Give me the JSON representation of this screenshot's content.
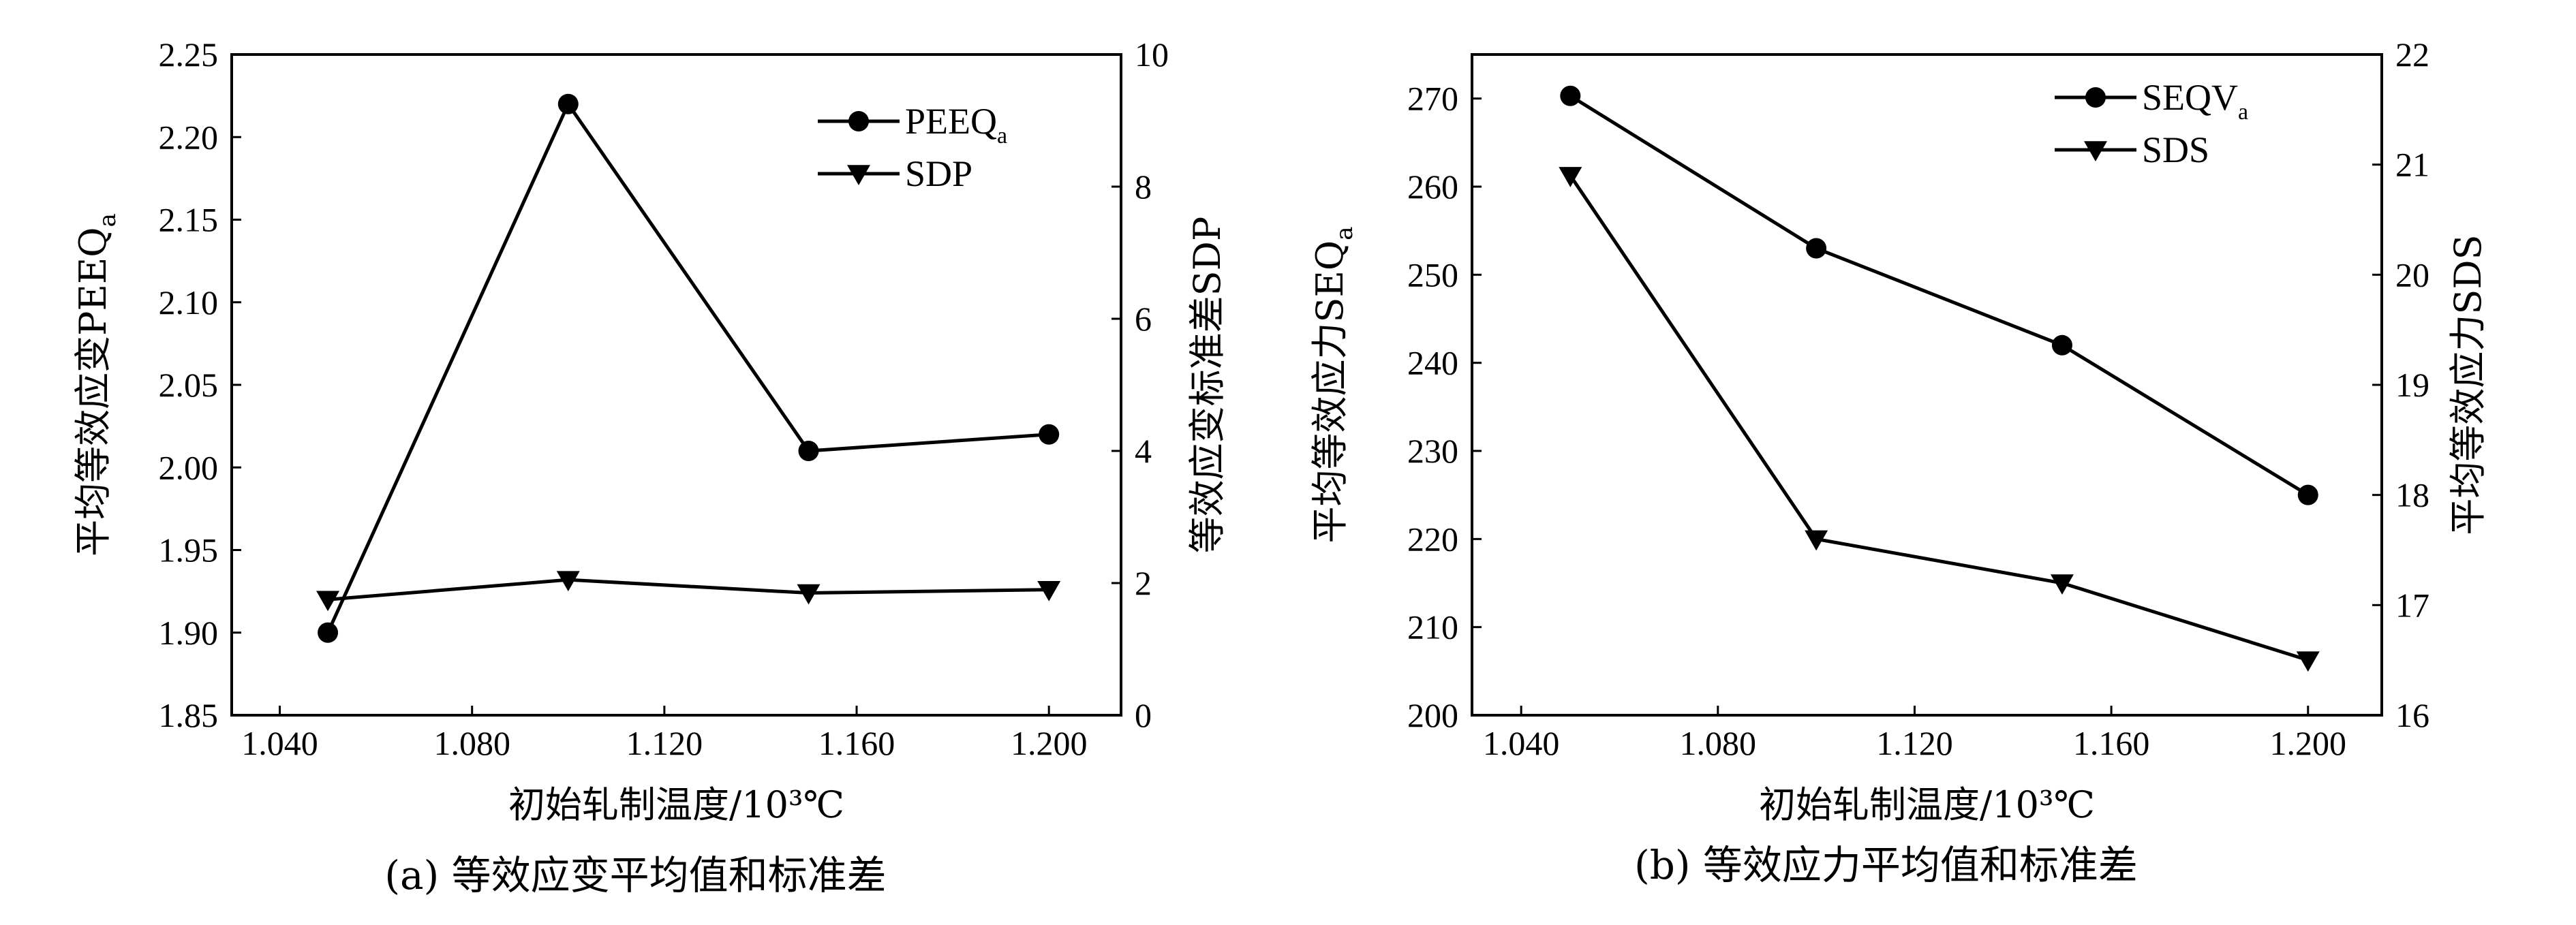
{
  "chart_data": [
    {
      "type": "line",
      "caption": "(a) 等效应变平均值和标准差",
      "xlabel": "初始轧制温度/10³℃",
      "x_ticks": [
        "1.040",
        "1.080",
        "1.120",
        "1.160",
        "1.200"
      ],
      "xlim": [
        1.03,
        1.215
      ],
      "ylabel_left": {
        "text": "平均等效应变PEEQ",
        "sub": "a"
      },
      "ylim_left": [
        1.85,
        2.25
      ],
      "yticks_left": [
        "1.85",
        "1.90",
        "1.95",
        "2.00",
        "2.05",
        "2.10",
        "2.15",
        "2.20",
        "2.25"
      ],
      "ylabel_right": "等效应变标准差SDP",
      "ylim_right": [
        0,
        10
      ],
      "yticks_right": [
        "0",
        "2",
        "4",
        "6",
        "8",
        "10"
      ],
      "x": [
        1.05,
        1.1,
        1.15,
        1.2
      ],
      "series": [
        {
          "name": "PEEQ",
          "sub": "a",
          "marker": "circle",
          "axis": "left",
          "values": [
            1.9,
            2.22,
            2.01,
            2.02
          ]
        },
        {
          "name": "SDP",
          "sub": "",
          "marker": "triangle-down",
          "axis": "right",
          "values": [
            1.75,
            2.05,
            1.85,
            1.9
          ]
        }
      ]
    },
    {
      "type": "line",
      "caption": "(b) 等效应力平均值和标准差",
      "xlabel": "初始轧制温度/10³℃",
      "x_ticks": [
        "1.040",
        "1.080",
        "1.120",
        "1.160",
        "1.200"
      ],
      "xlim": [
        1.03,
        1.215
      ],
      "ylabel_left": {
        "text": "平均等效应力SEQ",
        "sub": "a"
      },
      "ylim_left": [
        200,
        275
      ],
      "yticks_left": [
        "200",
        "210",
        "220",
        "230",
        "240",
        "250",
        "260",
        "270"
      ],
      "ylabel_right": "平均等效应力SDS",
      "ylim_right": [
        16,
        22
      ],
      "yticks_right": [
        "16",
        "17",
        "18",
        "19",
        "20",
        "21",
        "22"
      ],
      "x": [
        1.05,
        1.1,
        1.15,
        1.2
      ],
      "series": [
        {
          "name": "SEQV",
          "sub": "a",
          "marker": "circle",
          "axis": "left",
          "values": [
            270.3,
            253.0,
            242.0,
            225.0
          ]
        },
        {
          "name": "SDS",
          "sub": "",
          "marker": "triangle-down",
          "axis": "right",
          "values": [
            20.9,
            17.6,
            17.2,
            16.5
          ]
        }
      ]
    }
  ]
}
